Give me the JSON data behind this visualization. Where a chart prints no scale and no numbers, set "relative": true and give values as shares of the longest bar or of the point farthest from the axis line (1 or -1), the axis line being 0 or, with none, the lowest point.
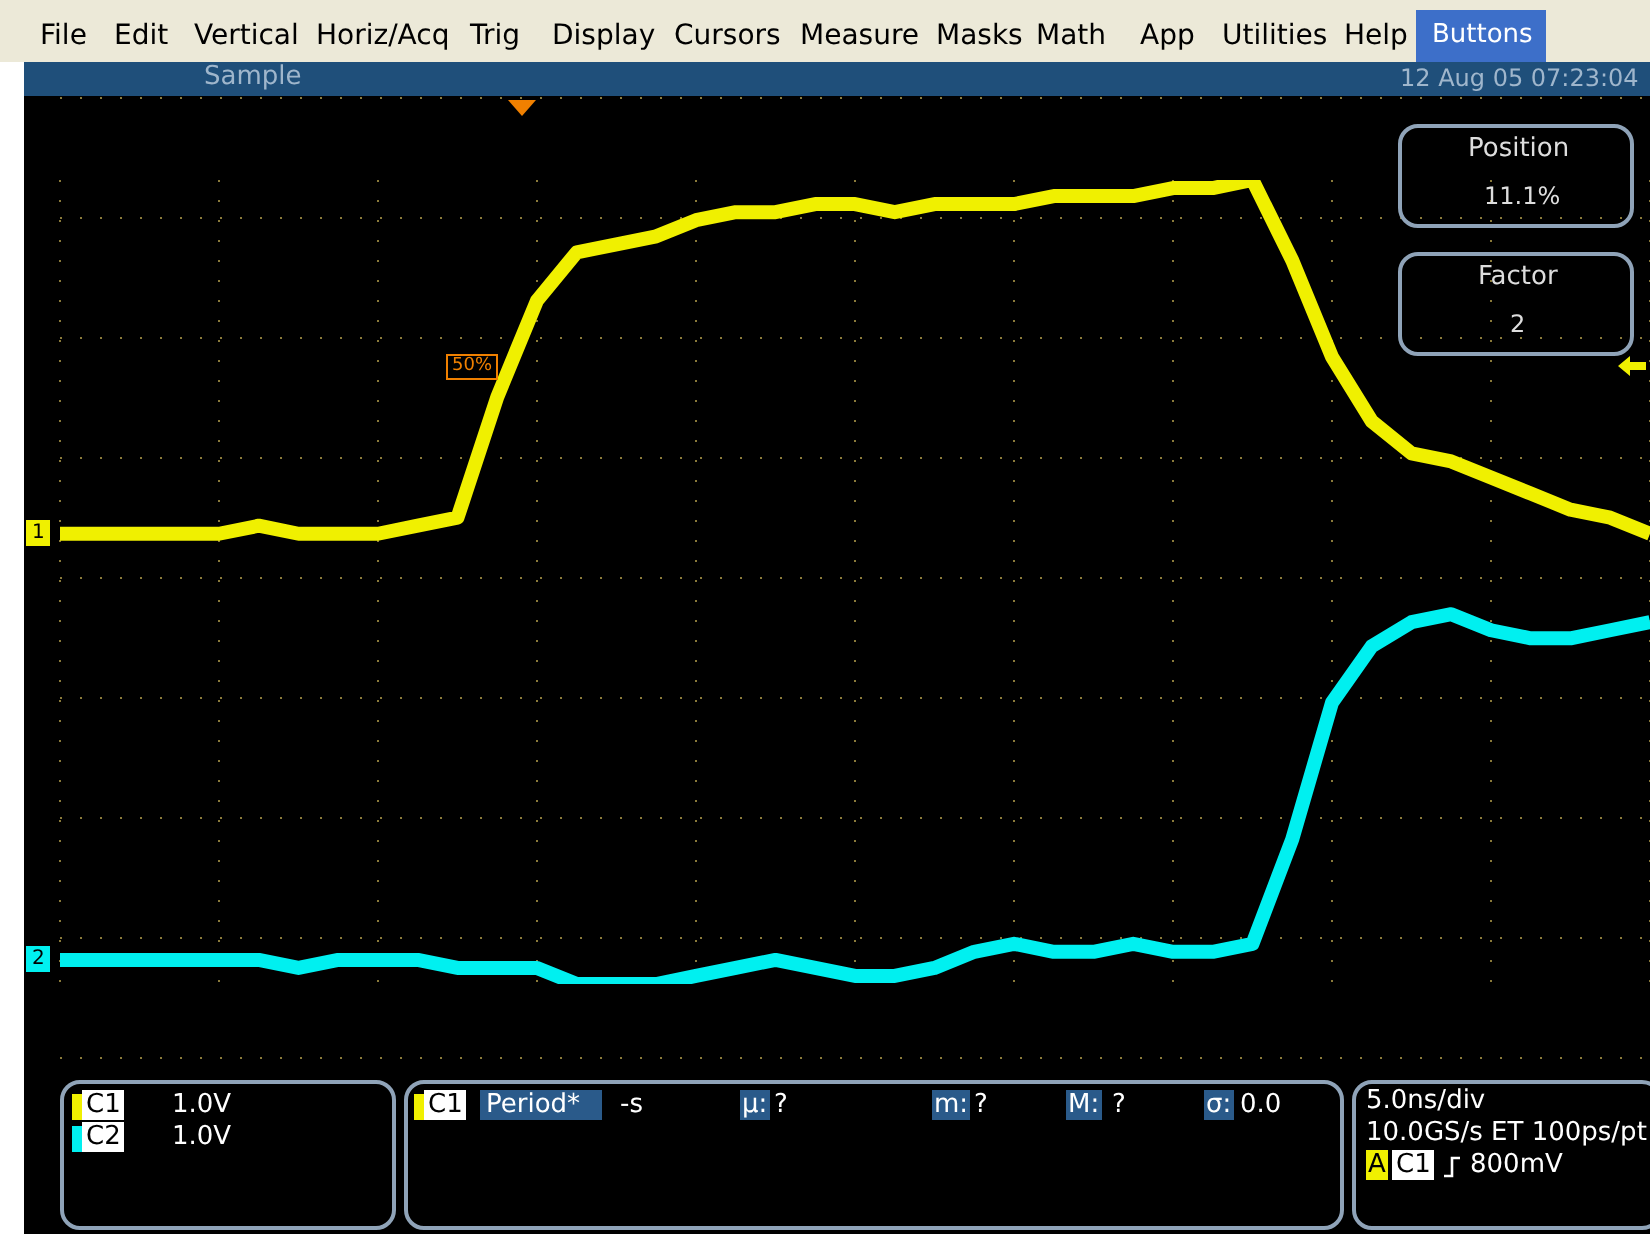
{
  "chart_data": {
    "type": "line",
    "relative": true,
    "grid": true,
    "categories": [
      null,
      null,
      null,
      null,
      null,
      null,
      null,
      null,
      null,
      null,
      null,
      null,
      null,
      null,
      null,
      null,
      null,
      null,
      null,
      null,
      null,
      null,
      null,
      null,
      null,
      null,
      null,
      null,
      null,
      null,
      null,
      null,
      null,
      null,
      null,
      null,
      null,
      null,
      null,
      null,
      null
    ],
    "series": [
      {
        "name": "1",
        "color": "#f0f000",
        "values": [
          0.56,
          0.56,
          0.56,
          0.56,
          0.56,
          0.57,
          0.56,
          0.56,
          0.56,
          0.57,
          0.58,
          0.73,
          0.85,
          0.91,
          0.92,
          0.93,
          0.95,
          0.96,
          0.96,
          0.97,
          0.97,
          0.96,
          0.97,
          0.97,
          0.97,
          0.98,
          0.98,
          0.98,
          0.99,
          0.99,
          1,
          0.9,
          0.78,
          0.7,
          0.66,
          0.65,
          0.63,
          0.61,
          0.59,
          0.58,
          0.56
        ]
      },
      {
        "name": "2",
        "color": "#00f0f0",
        "values": [
          0.03,
          0.03,
          0.03,
          0.03,
          0.03,
          0.03,
          0.02,
          0.03,
          0.03,
          0.03,
          0.02,
          0.02,
          0.02,
          0,
          0,
          0,
          0.01,
          0.02,
          0.03,
          0.02,
          0.01,
          0.01,
          0.02,
          0.04,
          0.05,
          0.04,
          0.04,
          0.05,
          0.04,
          0.04,
          0.05,
          0.18,
          0.35,
          0.42,
          0.45,
          0.46,
          0.44,
          0.43,
          0.43,
          0.44,
          0.45
        ]
      }
    ],
    "annotations": [
      "File",
      "Edit",
      "Vertical",
      "Horiz/Acq",
      "Trig",
      "Display",
      "Cursors",
      "Measure",
      "Masks",
      "Math",
      "App",
      "Utilities",
      "Help",
      "Buttons",
      "Sample",
      "12 Aug 05 07:23:04",
      "Position",
      "11.1%",
      "Factor",
      "2",
      "50%",
      "C1",
      "1.0V",
      "C2",
      "1.0V",
      "C1",
      "Period*",
      "-s",
      "µ:",
      "?",
      "m:",
      "?",
      "M:",
      "?",
      "σ:",
      "0.0",
      "5.0ns/div",
      "10.0GS/s ET 100ps/pt",
      "A",
      "C1",
      "800mV"
    ]
  }
}
